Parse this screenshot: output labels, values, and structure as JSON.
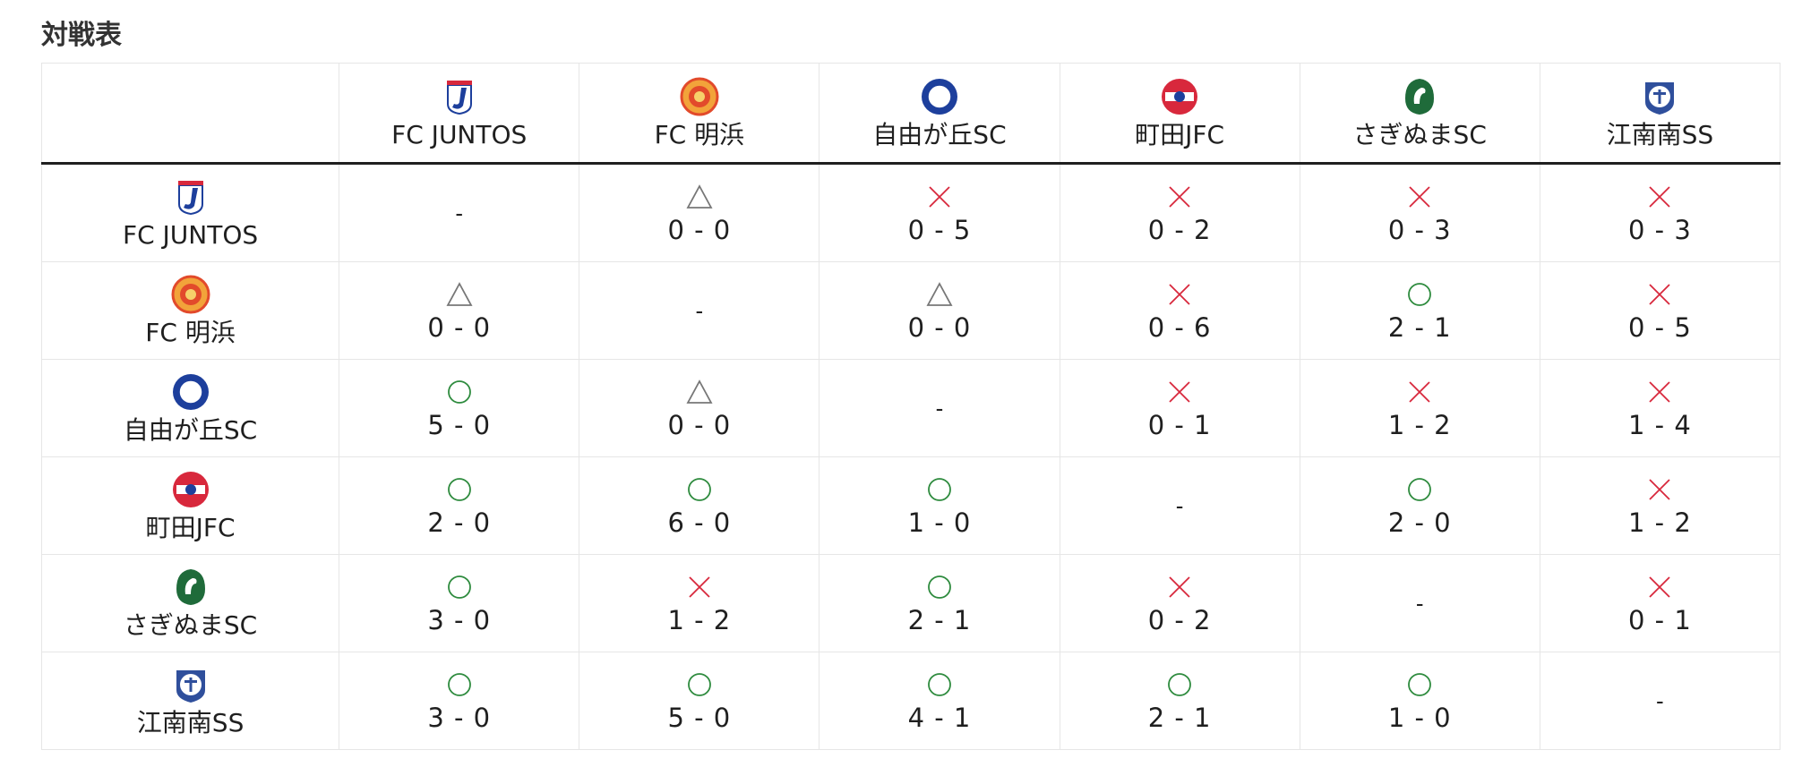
{
  "page": {
    "title": "対戦表"
  },
  "colors": {
    "win": "#2e8b3e",
    "loss": "#d8283c",
    "draw": "#777777",
    "border": "#e6e6e6"
  },
  "teams": [
    {
      "name": "FC JUNTOS",
      "logo": "juntos-logo-icon"
    },
    {
      "name": "FC 明浜",
      "logo": "akehama-logo-icon"
    },
    {
      "name": "自由が丘SC",
      "logo": "jiyugaoka-logo-icon"
    },
    {
      "name": "町田JFC",
      "logo": "machida-logo-icon"
    },
    {
      "name": "さぎぬまSC",
      "logo": "saginuma-logo-icon"
    },
    {
      "name": "江南南SS",
      "logo": "konan-logo-icon"
    }
  ],
  "results": [
    [
      {
        "self": true,
        "text": "-"
      },
      {
        "mark": "draw",
        "score": "0 - 0"
      },
      {
        "mark": "loss",
        "score": "0 - 5"
      },
      {
        "mark": "loss",
        "score": "0 - 2"
      },
      {
        "mark": "loss",
        "score": "0 - 3"
      },
      {
        "mark": "loss",
        "score": "0 - 3"
      }
    ],
    [
      {
        "mark": "draw",
        "score": "0 - 0"
      },
      {
        "self": true,
        "text": "-"
      },
      {
        "mark": "draw",
        "score": "0 - 0"
      },
      {
        "mark": "loss",
        "score": "0 - 6"
      },
      {
        "mark": "win",
        "score": "2 - 1"
      },
      {
        "mark": "loss",
        "score": "0 - 5"
      }
    ],
    [
      {
        "mark": "win",
        "score": "5 - 0"
      },
      {
        "mark": "draw",
        "score": "0 - 0"
      },
      {
        "self": true,
        "text": "-"
      },
      {
        "mark": "loss",
        "score": "0 - 1"
      },
      {
        "mark": "loss",
        "score": "1 - 2"
      },
      {
        "mark": "loss",
        "score": "1 - 4"
      }
    ],
    [
      {
        "mark": "win",
        "score": "2 - 0"
      },
      {
        "mark": "win",
        "score": "6 - 0"
      },
      {
        "mark": "win",
        "score": "1 - 0"
      },
      {
        "self": true,
        "text": "-"
      },
      {
        "mark": "win",
        "score": "2 - 0"
      },
      {
        "mark": "loss",
        "score": "1 - 2"
      }
    ],
    [
      {
        "mark": "win",
        "score": "3 - 0"
      },
      {
        "mark": "loss",
        "score": "1 - 2"
      },
      {
        "mark": "win",
        "score": "2 - 1"
      },
      {
        "mark": "loss",
        "score": "0 - 2"
      },
      {
        "self": true,
        "text": "-"
      },
      {
        "mark": "loss",
        "score": "0 - 1"
      }
    ],
    [
      {
        "mark": "win",
        "score": "3 - 0"
      },
      {
        "mark": "win",
        "score": "5 - 0"
      },
      {
        "mark": "win",
        "score": "4 - 1"
      },
      {
        "mark": "win",
        "score": "2 - 1"
      },
      {
        "mark": "win",
        "score": "1 - 0"
      },
      {
        "self": true,
        "text": "-"
      }
    ]
  ]
}
